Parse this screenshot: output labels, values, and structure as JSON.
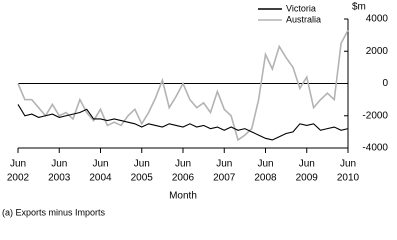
{
  "chart_data": {
    "type": "line",
    "y_unit": "$m",
    "xlabel": "Month",
    "footnote": "(a) Exports minus Imports",
    "legend": "top-right",
    "reference_line": 0,
    "x": [
      "2002-06",
      "2002-08",
      "2002-10",
      "2002-12",
      "2003-02",
      "2003-04",
      "2003-06",
      "2003-08",
      "2003-10",
      "2003-12",
      "2004-02",
      "2004-04",
      "2004-06",
      "2004-08",
      "2004-10",
      "2004-12",
      "2005-02",
      "2005-04",
      "2005-06",
      "2005-08",
      "2005-10",
      "2005-12",
      "2006-02",
      "2006-04",
      "2006-06",
      "2006-08",
      "2006-10",
      "2006-12",
      "2007-02",
      "2007-04",
      "2007-06",
      "2007-08",
      "2007-10",
      "2007-12",
      "2008-02",
      "2008-04",
      "2008-06",
      "2008-08",
      "2008-10",
      "2008-12",
      "2009-02",
      "2009-04",
      "2009-06",
      "2009-08",
      "2009-10",
      "2009-12",
      "2010-02",
      "2010-04",
      "2010-06"
    ],
    "series": [
      {
        "name": "Victoria",
        "color": "#000000",
        "values": [
          -1300,
          -2000,
          -1900,
          -2100,
          -2000,
          -1900,
          -2100,
          -2000,
          -1900,
          -1800,
          -1600,
          -2200,
          -2200,
          -2300,
          -2200,
          -2300,
          -2400,
          -2500,
          -2700,
          -2500,
          -2600,
          -2700,
          -2500,
          -2600,
          -2700,
          -2500,
          -2700,
          -2600,
          -2800,
          -2700,
          -2900,
          -2700,
          -2900,
          -2800,
          -3000,
          -3200,
          -3400,
          -3500,
          -3300,
          -3100,
          -3000,
          -2500,
          -2600,
          -2500,
          -2900,
          -2800,
          -2700,
          -2900,
          -2800
        ]
      },
      {
        "name": "Australia",
        "color": "#b3b3b3",
        "values": [
          0,
          -1000,
          -1000,
          -1500,
          -2000,
          -1300,
          -2000,
          -1800,
          -2200,
          -1000,
          -1800,
          -2300,
          -1600,
          -2600,
          -2400,
          -2600,
          -2000,
          -1600,
          -2500,
          -1800,
          -900,
          200,
          -1500,
          -800,
          0,
          -1000,
          -1500,
          -1200,
          -1800,
          -500,
          -1600,
          -2000,
          -3500,
          -3200,
          -2800,
          -1000,
          1800,
          900,
          2300,
          1600,
          1000,
          -300,
          400,
          -1500,
          -1000,
          -600,
          -1000,
          2500,
          3300
        ]
      }
    ],
    "xlim": [
      "2002-06",
      "2010-06"
    ],
    "xticks": [
      {
        "value": "2002-06",
        "label": [
          "Jun",
          "2002"
        ]
      },
      {
        "value": "2003-06",
        "label": [
          "Jun",
          "2003"
        ]
      },
      {
        "value": "2004-06",
        "label": [
          "Jun",
          "2004"
        ]
      },
      {
        "value": "2005-06",
        "label": [
          "Jun",
          "2005"
        ]
      },
      {
        "value": "2006-06",
        "label": [
          "Jun",
          "2006"
        ]
      },
      {
        "value": "2007-06",
        "label": [
          "Jun",
          "2007"
        ]
      },
      {
        "value": "2008-06",
        "label": [
          "Jun",
          "2008"
        ]
      },
      {
        "value": "2009-06",
        "label": [
          "Jun",
          "2009"
        ]
      },
      {
        "value": "2010-06",
        "label": [
          "Jun",
          "2010"
        ]
      }
    ],
    "ylim": [
      -4000,
      4000
    ],
    "yticks": [
      4000,
      2000,
      0,
      -2000,
      -4000
    ],
    "grid": false
  }
}
